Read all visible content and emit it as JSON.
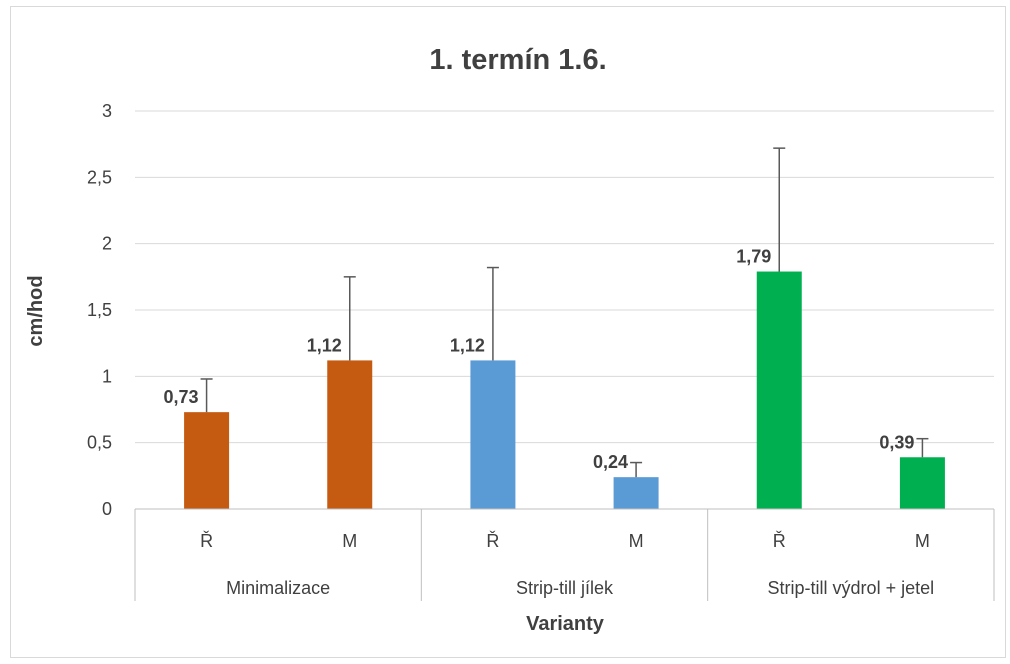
{
  "chart_data": {
    "type": "bar",
    "title": "1. termín 1.6.",
    "xlabel": "Varianty",
    "ylabel": "cm/hod",
    "ylim": [
      0,
      3
    ],
    "yticks": [
      "0",
      "0,5",
      "1",
      "1,5",
      "2",
      "2,5",
      "3"
    ],
    "ytick_values": [
      0,
      0.5,
      1,
      1.5,
      2,
      2.5,
      3
    ],
    "grid": true,
    "legend": "none",
    "groups": [
      {
        "name": "Minimalizace",
        "color": "#c55a11",
        "bars": [
          {
            "category": "Ř",
            "value": 0.73,
            "label": "0,73",
            "error_upper": 0.98
          },
          {
            "category": "M",
            "value": 1.12,
            "label": "1,12",
            "error_upper": 1.75
          }
        ]
      },
      {
        "name": "Strip-till jílek",
        "color": "#5b9bd5",
        "bars": [
          {
            "category": "Ř",
            "value": 1.12,
            "label": "1,12",
            "error_upper": 1.82
          },
          {
            "category": "M",
            "value": 0.24,
            "label": "0,24",
            "error_upper": 0.35
          }
        ]
      },
      {
        "name": "Strip-till výdrol + jetel",
        "color": "#00b050",
        "bars": [
          {
            "category": "Ř",
            "value": 1.79,
            "label": "1,79",
            "error_upper": 2.72
          },
          {
            "category": "M",
            "value": 0.39,
            "label": "0,39",
            "error_upper": 0.53
          }
        ]
      }
    ]
  }
}
